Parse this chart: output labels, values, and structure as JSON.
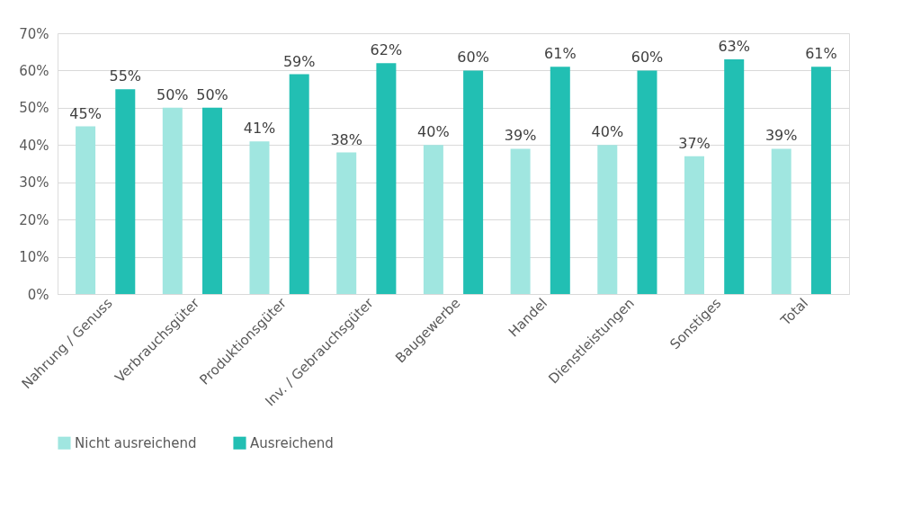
{
  "chart_data": {
    "type": "bar",
    "categories": [
      "Nahrung / Genuss",
      "Verbrauchsgüter",
      "Produktionsgüter",
      "Inv. / Gebrauchsgüter",
      "Baugewerbe",
      "Handel",
      "Dienstleistungen",
      "Sonstiges",
      "Total"
    ],
    "series": [
      {
        "name": "Nicht ausreichend",
        "color": "#a0e6e0",
        "values": [
          45,
          50,
          41,
          38,
          40,
          39,
          40,
          37,
          39
        ],
        "value_labels": [
          "45%",
          "50%",
          "41%",
          "38%",
          "40%",
          "39%",
          "40%",
          "37%",
          "39%"
        ]
      },
      {
        "name": "Ausreichend",
        "color": "#22bfb3",
        "values": [
          55,
          50,
          59,
          62,
          60,
          61,
          60,
          63,
          61
        ],
        "value_labels": [
          "55%",
          "50%",
          "59%",
          "62%",
          "60%",
          "61%",
          "60%",
          "63%",
          "61%"
        ]
      }
    ],
    "ylim": [
      0,
      70
    ],
    "yticks": [
      {
        "value": 0,
        "label": "0%"
      },
      {
        "value": 10,
        "label": "10%"
      },
      {
        "value": 20,
        "label": "20%"
      },
      {
        "value": 30,
        "label": "30%"
      },
      {
        "value": 40,
        "label": "40%"
      },
      {
        "value": 50,
        "label": "50%"
      },
      {
        "value": 60,
        "label": "60%"
      },
      {
        "value": 70,
        "label": "70%"
      }
    ],
    "grid": "y",
    "legend": "bottom"
  }
}
